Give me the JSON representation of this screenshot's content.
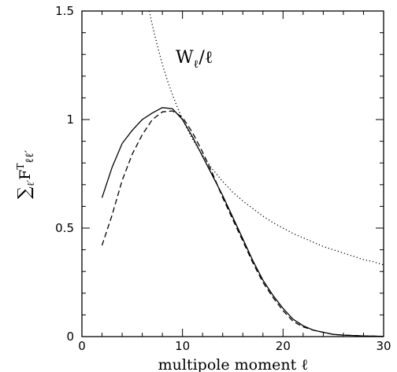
{
  "chart_data": {
    "type": "line",
    "title": "",
    "xlabel": "multipole moment ℓ",
    "ylabel": "∑ℓ′ Fℓℓ′",
    "ylabel_sum": "∑",
    "ylabel_sub1": "ℓ′",
    "ylabel_F": "F",
    "ylabel_sup": "T",
    "ylabel_sub2": "ℓℓ′",
    "xlim": [
      0,
      30
    ],
    "ylim": [
      0,
      1.5
    ],
    "xticks": [
      0,
      10,
      20,
      30
    ],
    "xtick_labels": [
      "0",
      "10",
      "20",
      "30"
    ],
    "yticks": [
      0,
      0.5,
      1,
      1.5
    ],
    "ytick_labels": [
      "0",
      "0.5",
      "1",
      "1.5"
    ],
    "grid": false,
    "annotation": {
      "text": "Wℓ/ℓ",
      "W": "W",
      "sub": "ℓ",
      "rest": "/ℓ"
    },
    "series": [
      {
        "style": "solid",
        "x": [
          2,
          3,
          4,
          5,
          6,
          7,
          8,
          9,
          10,
          11,
          12,
          13,
          14,
          15,
          16,
          17,
          18,
          19,
          20,
          21,
          22,
          23,
          24,
          25,
          26,
          27,
          28,
          29,
          30
        ],
        "y": [
          0.64,
          0.78,
          0.89,
          0.95,
          1.0,
          1.03,
          1.055,
          1.05,
          1.0,
          0.92,
          0.83,
          0.74,
          0.65,
          0.55,
          0.45,
          0.35,
          0.26,
          0.19,
          0.13,
          0.08,
          0.05,
          0.03,
          0.02,
          0.01,
          0.007,
          0.005,
          0.003,
          0.002,
          0.001
        ]
      },
      {
        "style": "dashed",
        "x": [
          2,
          3,
          4,
          5,
          6,
          7,
          8,
          9,
          10,
          11,
          12,
          13,
          14,
          15,
          16,
          17,
          18,
          19,
          20,
          21,
          22,
          23,
          24,
          25,
          26,
          27,
          28,
          29,
          30
        ],
        "y": [
          0.42,
          0.56,
          0.72,
          0.84,
          0.93,
          1.0,
          1.035,
          1.04,
          1.01,
          0.94,
          0.85,
          0.75,
          0.64,
          0.54,
          0.44,
          0.34,
          0.25,
          0.18,
          0.12,
          0.07,
          0.045,
          0.03,
          0.02,
          0.01,
          0.007,
          0.005,
          0.003,
          0.002,
          0.001
        ]
      },
      {
        "style": "dotted",
        "x": [
          6.7,
          7,
          7.5,
          8,
          8.5,
          9,
          9.5,
          10,
          11,
          12,
          13,
          14,
          15,
          16,
          17,
          18,
          19,
          20,
          21,
          22,
          23,
          24,
          25,
          26,
          27,
          28,
          29,
          30
        ],
        "y": [
          1.5,
          1.435,
          1.34,
          1.255,
          1.18,
          1.115,
          1.055,
          1.0,
          0.91,
          0.835,
          0.77,
          0.715,
          0.665,
          0.625,
          0.59,
          0.555,
          0.525,
          0.5,
          0.475,
          0.455,
          0.435,
          0.415,
          0.4,
          0.385,
          0.37,
          0.355,
          0.345,
          0.33
        ]
      }
    ]
  }
}
